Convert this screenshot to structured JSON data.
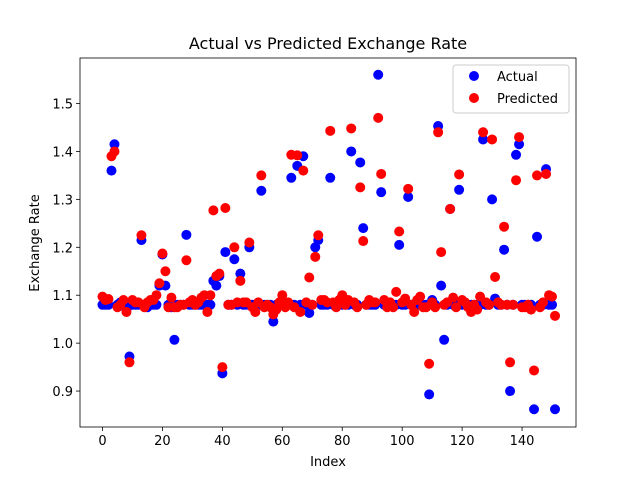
{
  "chart_data": {
    "type": "scatter",
    "title": "Actual vs Predicted Exchange Rate",
    "xlabel": "Index",
    "ylabel": "Exchange Rate",
    "xlim": [
      -7.5,
      158
    ],
    "ylim": [
      0.825,
      1.595
    ],
    "xticks": [
      0,
      20,
      40,
      60,
      80,
      100,
      120,
      140
    ],
    "yticks": [
      0.9,
      1.0,
      1.1,
      1.2,
      1.3,
      1.4,
      1.5
    ],
    "ytick_labels": [
      "0.9",
      "1.0",
      "1.1",
      "1.2",
      "1.3",
      "1.4",
      "1.5"
    ],
    "grid": false,
    "legend_position": "top-right",
    "series": [
      {
        "name": "Actual",
        "color": "#0000ff",
        "points": [
          [
            0,
            1.08
          ],
          [
            1,
            1.08
          ],
          [
            2,
            1.08
          ],
          [
            3,
            1.36
          ],
          [
            4,
            1.415
          ],
          [
            5,
            1.08
          ],
          [
            6,
            1.085
          ],
          [
            7,
            1.08
          ],
          [
            8,
            1.07
          ],
          [
            9,
            0.972
          ],
          [
            10,
            1.08
          ],
          [
            11,
            1.08
          ],
          [
            12,
            1.08
          ],
          [
            13,
            1.215
          ],
          [
            14,
            1.08
          ],
          [
            15,
            1.075
          ],
          [
            16,
            1.08
          ],
          [
            17,
            1.08
          ],
          [
            18,
            1.08
          ],
          [
            19,
            1.12
          ],
          [
            20,
            1.185
          ],
          [
            21,
            1.12
          ],
          [
            22,
            1.08
          ],
          [
            23,
            1.075
          ],
          [
            24,
            1.007
          ],
          [
            25,
            1.08
          ],
          [
            26,
            1.08
          ],
          [
            27,
            1.08
          ],
          [
            28,
            1.226
          ],
          [
            29,
            1.08
          ],
          [
            30,
            1.08
          ],
          [
            31,
            1.08
          ],
          [
            32,
            1.08
          ],
          [
            33,
            1.08
          ],
          [
            34,
            1.08
          ],
          [
            35,
            1.08
          ],
          [
            36,
            1.08
          ],
          [
            37,
            1.13
          ],
          [
            38,
            1.12
          ],
          [
            39,
            1.14
          ],
          [
            40,
            0.937
          ],
          [
            41,
            1.19
          ],
          [
            42,
            1.08
          ],
          [
            43,
            1.08
          ],
          [
            44,
            1.175
          ],
          [
            45,
            1.08
          ],
          [
            46,
            1.145
          ],
          [
            47,
            1.08
          ],
          [
            48,
            1.08
          ],
          [
            49,
            1.2
          ],
          [
            50,
            1.08
          ],
          [
            51,
            1.08
          ],
          [
            52,
            1.08
          ],
          [
            53,
            1.318
          ],
          [
            54,
            1.08
          ],
          [
            55,
            1.08
          ],
          [
            56,
            1.08
          ],
          [
            57,
            1.045
          ],
          [
            58,
            1.08
          ],
          [
            59,
            1.08
          ],
          [
            60,
            1.08
          ],
          [
            61,
            1.08
          ],
          [
            62,
            1.08
          ],
          [
            63,
            1.345
          ],
          [
            64,
            1.08
          ],
          [
            65,
            1.37
          ],
          [
            66,
            1.08
          ],
          [
            67,
            1.39
          ],
          [
            68,
            1.08
          ],
          [
            69,
            1.063
          ],
          [
            70,
            1.08
          ],
          [
            71,
            1.2
          ],
          [
            72,
            1.215
          ],
          [
            73,
            1.08
          ],
          [
            74,
            1.08
          ],
          [
            75,
            1.08
          ],
          [
            76,
            1.345
          ],
          [
            77,
            1.08
          ],
          [
            78,
            1.08
          ],
          [
            79,
            1.08
          ],
          [
            80,
            1.08
          ],
          [
            81,
            1.08
          ],
          [
            82,
            1.08
          ],
          [
            83,
            1.4
          ],
          [
            84,
            1.08
          ],
          [
            85,
            1.08
          ],
          [
            86,
            1.377
          ],
          [
            87,
            1.24
          ],
          [
            88,
            1.08
          ],
          [
            89,
            1.08
          ],
          [
            90,
            1.08
          ],
          [
            91,
            1.08
          ],
          [
            92,
            1.56
          ],
          [
            93,
            1.315
          ],
          [
            94,
            1.08
          ],
          [
            95,
            1.08
          ],
          [
            96,
            1.08
          ],
          [
            97,
            1.08
          ],
          [
            98,
            1.08
          ],
          [
            99,
            1.205
          ],
          [
            100,
            1.08
          ],
          [
            101,
            1.08
          ],
          [
            102,
            1.305
          ],
          [
            103,
            1.08
          ],
          [
            104,
            1.08
          ],
          [
            105,
            1.08
          ],
          [
            106,
            1.08
          ],
          [
            107,
            1.08
          ],
          [
            108,
            1.08
          ],
          [
            109,
            0.893
          ],
          [
            110,
            1.09
          ],
          [
            111,
            1.08
          ],
          [
            112,
            1.453
          ],
          [
            113,
            1.12
          ],
          [
            114,
            1.007
          ],
          [
            115,
            1.08
          ],
          [
            116,
            1.28
          ],
          [
            117,
            1.08
          ],
          [
            118,
            1.08
          ],
          [
            119,
            1.32
          ],
          [
            120,
            1.08
          ],
          [
            121,
            1.08
          ],
          [
            122,
            1.08
          ],
          [
            123,
            1.08
          ],
          [
            124,
            1.08
          ],
          [
            125,
            1.08
          ],
          [
            126,
            1.08
          ],
          [
            127,
            1.425
          ],
          [
            128,
            1.08
          ],
          [
            129,
            1.08
          ],
          [
            130,
            1.3
          ],
          [
            131,
            1.093
          ],
          [
            132,
            1.08
          ],
          [
            133,
            1.08
          ],
          [
            134,
            1.195
          ],
          [
            135,
            1.08
          ],
          [
            136,
            0.9
          ],
          [
            137,
            1.08
          ],
          [
            138,
            1.393
          ],
          [
            139,
            1.415
          ],
          [
            140,
            1.08
          ],
          [
            141,
            1.08
          ],
          [
            142,
            1.08
          ],
          [
            143,
            1.08
          ],
          [
            144,
            0.862
          ],
          [
            145,
            1.222
          ],
          [
            146,
            1.08
          ],
          [
            147,
            1.08
          ],
          [
            148,
            1.363
          ],
          [
            149,
            1.08
          ],
          [
            150,
            1.08
          ],
          [
            151,
            0.862
          ]
        ]
      },
      {
        "name": "Predicted",
        "color": "#ff0000",
        "points": [
          [
            0,
            1.097
          ],
          [
            1,
            1.09
          ],
          [
            2,
            1.092
          ],
          [
            3,
            1.39
          ],
          [
            4,
            1.4
          ],
          [
            5,
            1.075
          ],
          [
            6,
            1.08
          ],
          [
            7,
            1.09
          ],
          [
            8,
            1.065
          ],
          [
            9,
            0.96
          ],
          [
            10,
            1.09
          ],
          [
            11,
            1.085
          ],
          [
            12,
            1.085
          ],
          [
            13,
            1.225
          ],
          [
            14,
            1.075
          ],
          [
            15,
            1.085
          ],
          [
            16,
            1.09
          ],
          [
            17,
            1.09
          ],
          [
            18,
            1.1
          ],
          [
            19,
            1.125
          ],
          [
            20,
            1.187
          ],
          [
            21,
            1.15
          ],
          [
            22,
            1.075
          ],
          [
            23,
            1.095
          ],
          [
            24,
            1.075
          ],
          [
            25,
            1.075
          ],
          [
            26,
            1.08
          ],
          [
            27,
            1.08
          ],
          [
            28,
            1.173
          ],
          [
            29,
            1.085
          ],
          [
            30,
            1.09
          ],
          [
            31,
            1.08
          ],
          [
            32,
            1.085
          ],
          [
            33,
            1.095
          ],
          [
            34,
            1.1
          ],
          [
            35,
            1.065
          ],
          [
            36,
            1.1
          ],
          [
            37,
            1.277
          ],
          [
            38,
            1.14
          ],
          [
            39,
            1.145
          ],
          [
            40,
            0.95
          ],
          [
            41,
            1.282
          ],
          [
            42,
            1.08
          ],
          [
            43,
            1.08
          ],
          [
            44,
            1.2
          ],
          [
            45,
            1.085
          ],
          [
            46,
            1.13
          ],
          [
            47,
            1.085
          ],
          [
            48,
            1.085
          ],
          [
            49,
            1.21
          ],
          [
            50,
            1.075
          ],
          [
            51,
            1.065
          ],
          [
            52,
            1.085
          ],
          [
            53,
            1.35
          ],
          [
            54,
            1.075
          ],
          [
            55,
            1.08
          ],
          [
            56,
            1.075
          ],
          [
            57,
            1.06
          ],
          [
            58,
            1.07
          ],
          [
            59,
            1.085
          ],
          [
            60,
            1.1
          ],
          [
            61,
            1.075
          ],
          [
            62,
            1.085
          ],
          [
            63,
            1.393
          ],
          [
            64,
            1.075
          ],
          [
            65,
            1.392
          ],
          [
            66,
            1.065
          ],
          [
            67,
            1.36
          ],
          [
            68,
            1.085
          ],
          [
            69,
            1.137
          ],
          [
            70,
            1.08
          ],
          [
            71,
            1.18
          ],
          [
            72,
            1.225
          ],
          [
            73,
            1.09
          ],
          [
            74,
            1.09
          ],
          [
            75,
            1.085
          ],
          [
            76,
            1.443
          ],
          [
            77,
            1.085
          ],
          [
            78,
            1.075
          ],
          [
            79,
            1.09
          ],
          [
            80,
            1.1
          ],
          [
            81,
            1.08
          ],
          [
            82,
            1.09
          ],
          [
            83,
            1.448
          ],
          [
            84,
            1.085
          ],
          [
            85,
            1.075
          ],
          [
            86,
            1.325
          ],
          [
            87,
            1.213
          ],
          [
            88,
            1.08
          ],
          [
            89,
            1.09
          ],
          [
            90,
            1.085
          ],
          [
            91,
            1.085
          ],
          [
            92,
            1.47
          ],
          [
            93,
            1.353
          ],
          [
            94,
            1.09
          ],
          [
            95,
            1.075
          ],
          [
            96,
            1.085
          ],
          [
            97,
            1.075
          ],
          [
            98,
            1.107
          ],
          [
            99,
            1.233
          ],
          [
            100,
            1.085
          ],
          [
            101,
            1.093
          ],
          [
            102,
            1.322
          ],
          [
            103,
            1.08
          ],
          [
            104,
            1.065
          ],
          [
            105,
            1.09
          ],
          [
            106,
            1.097
          ],
          [
            107,
            1.075
          ],
          [
            108,
            1.075
          ],
          [
            109,
            0.957
          ],
          [
            110,
            1.085
          ],
          [
            111,
            1.075
          ],
          [
            112,
            1.44
          ],
          [
            113,
            1.19
          ],
          [
            114,
            1.08
          ],
          [
            115,
            1.085
          ],
          [
            116,
            1.28
          ],
          [
            117,
            1.095
          ],
          [
            118,
            1.075
          ],
          [
            119,
            1.352
          ],
          [
            120,
            1.09
          ],
          [
            121,
            1.085
          ],
          [
            122,
            1.075
          ],
          [
            123,
            1.065
          ],
          [
            124,
            1.08
          ],
          [
            125,
            1.07
          ],
          [
            126,
            1.097
          ],
          [
            127,
            1.44
          ],
          [
            128,
            1.085
          ],
          [
            129,
            1.08
          ],
          [
            130,
            1.425
          ],
          [
            131,
            1.138
          ],
          [
            132,
            1.085
          ],
          [
            133,
            1.08
          ],
          [
            134,
            1.243
          ],
          [
            135,
            1.08
          ],
          [
            136,
            0.96
          ],
          [
            137,
            1.08
          ],
          [
            138,
            1.34
          ],
          [
            139,
            1.43
          ],
          [
            140,
            1.075
          ],
          [
            141,
            1.075
          ],
          [
            142,
            1.08
          ],
          [
            143,
            1.07
          ],
          [
            144,
            0.943
          ],
          [
            145,
            1.35
          ],
          [
            146,
            1.075
          ],
          [
            147,
            1.085
          ],
          [
            148,
            1.353
          ],
          [
            149,
            1.1
          ],
          [
            150,
            1.097
          ],
          [
            151,
            1.057
          ]
        ]
      }
    ]
  }
}
